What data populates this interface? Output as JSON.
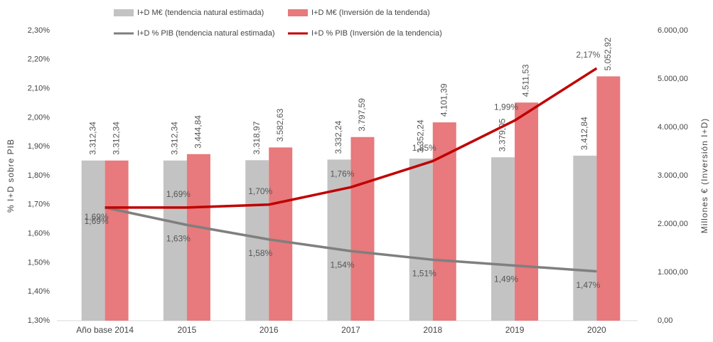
{
  "chart_data": {
    "type": "combo",
    "y_label": "% I+D sobre PIB",
    "y2_label": "Millones € (Inversión I+D)",
    "categories": [
      "Año base 2014",
      "2015",
      "2016",
      "2017",
      "2018",
      "2019",
      "2020"
    ],
    "ylim": [
      1.3,
      2.3
    ],
    "yticks": [
      {
        "value": 1.3,
        "label": "1,30%"
      },
      {
        "value": 1.4,
        "label": "1,40%"
      },
      {
        "value": 1.5,
        "label": "1,50%"
      },
      {
        "value": 1.6,
        "label": "1,60%"
      },
      {
        "value": 1.7,
        "label": "1,70%"
      },
      {
        "value": 1.8,
        "label": "1,80%"
      },
      {
        "value": 1.9,
        "label": "1,90%"
      },
      {
        "value": 2.0,
        "label": "2,00%"
      },
      {
        "value": 2.1,
        "label": "2,10%"
      },
      {
        "value": 2.2,
        "label": "2,20%"
      },
      {
        "value": 2.3,
        "label": "2,30%"
      }
    ],
    "y2lim": [
      0,
      6000
    ],
    "y2ticks": [
      {
        "value": 0,
        "label": "0,00"
      },
      {
        "value": 1000,
        "label": "1.000,00"
      },
      {
        "value": 2000,
        "label": "2.000,00"
      },
      {
        "value": 3000,
        "label": "3.000,00"
      },
      {
        "value": 4000,
        "label": "4.000,00"
      },
      {
        "value": 5000,
        "label": "5.000,00"
      },
      {
        "value": 6000,
        "label": "6.000,00"
      }
    ],
    "series": [
      {
        "name": "I+D M€ (tendencia natural estimada)",
        "type": "bar",
        "axis": "y2",
        "color": "#c3c3c3",
        "values": [
          3312.34,
          3312.34,
          3318.97,
          3332.24,
          3352.24,
          3379.05,
          3412.84
        ],
        "value_labels": [
          "3.312,34",
          "3.312,34",
          "3.318,97",
          "3.332,24",
          "3.352,24",
          "3.379,05",
          "3.412,84"
        ]
      },
      {
        "name": "I+D M€ (Inversión de la tendenda)",
        "type": "bar",
        "axis": "y2",
        "color": "#e8797c",
        "values": [
          3312.34,
          3444.84,
          3582.63,
          3797.59,
          4101.39,
          4511.53,
          5052.92
        ],
        "value_labels": [
          "3.312,34",
          "3.444,84",
          "3.582,63",
          "3.797,59",
          "4.101,39",
          "4.511,53",
          "5.052,92"
        ]
      },
      {
        "name": "I+D % PIB (tendencia natural estimada)",
        "type": "line",
        "axis": "y",
        "color": "#7f7f7f",
        "values": [
          1.69,
          1.63,
          1.58,
          1.54,
          1.51,
          1.49,
          1.47
        ],
        "value_labels": [
          "1,69%",
          "1,63%",
          "1,58%",
          "1,54%",
          "1,51%",
          "1,49%",
          "1,47%"
        ]
      },
      {
        "name": "I+D % PIB (Inversión de la tendencia)",
        "type": "line",
        "axis": "y",
        "color": "#c00000",
        "values": [
          1.69,
          1.69,
          1.7,
          1.76,
          1.85,
          1.99,
          2.17
        ],
        "value_labels": [
          "1,69%",
          "1,69%",
          "1,70%",
          "1,76%",
          "1,85%",
          "1,99%",
          "2,17%"
        ]
      }
    ]
  }
}
